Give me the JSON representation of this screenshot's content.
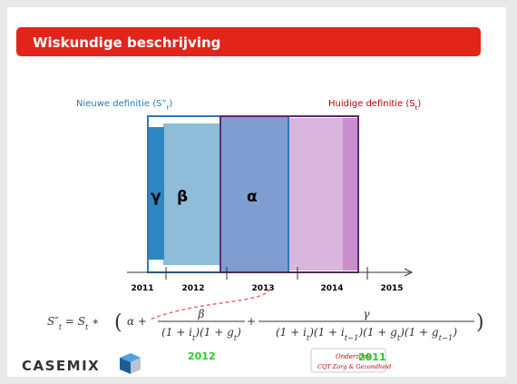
{
  "header": {
    "title": "Wiskundige beschrijving"
  },
  "labels": {
    "new": [
      "Nieuwe definitie (S”",
      "t",
      ")"
    ],
    "current": [
      "Huidige definitie (S",
      "t",
      ")"
    ]
  },
  "blocks": {
    "gamma": "γ",
    "beta": "β",
    "alpha": "α"
  },
  "years": [
    "2011",
    "2012",
    "2013",
    "2014",
    "2015"
  ],
  "formula": {
    "lhs": [
      "S″",
      "t",
      " = S",
      "t",
      " ∗ "
    ],
    "open": "(",
    "alpha_plus": "α +",
    "num1": "β",
    "den1": [
      "(1 + i",
      "t",
      ")(1 + g",
      "t",
      ")"
    ],
    "plus": "+",
    "num2": "γ",
    "den2": [
      "(1 + i",
      "t",
      ")(1 + i",
      "t−1",
      ")(1 + g",
      "t",
      ")(1 + g",
      "t−1",
      ")"
    ],
    "close": ")"
  },
  "footer": {
    "logo": "CASEMIX",
    "year_left": "2012",
    "badge_top": "Onderzoek",
    "badge_year": "2011",
    "badge_bottom": "CQT Zorg & Gezondheid"
  }
}
